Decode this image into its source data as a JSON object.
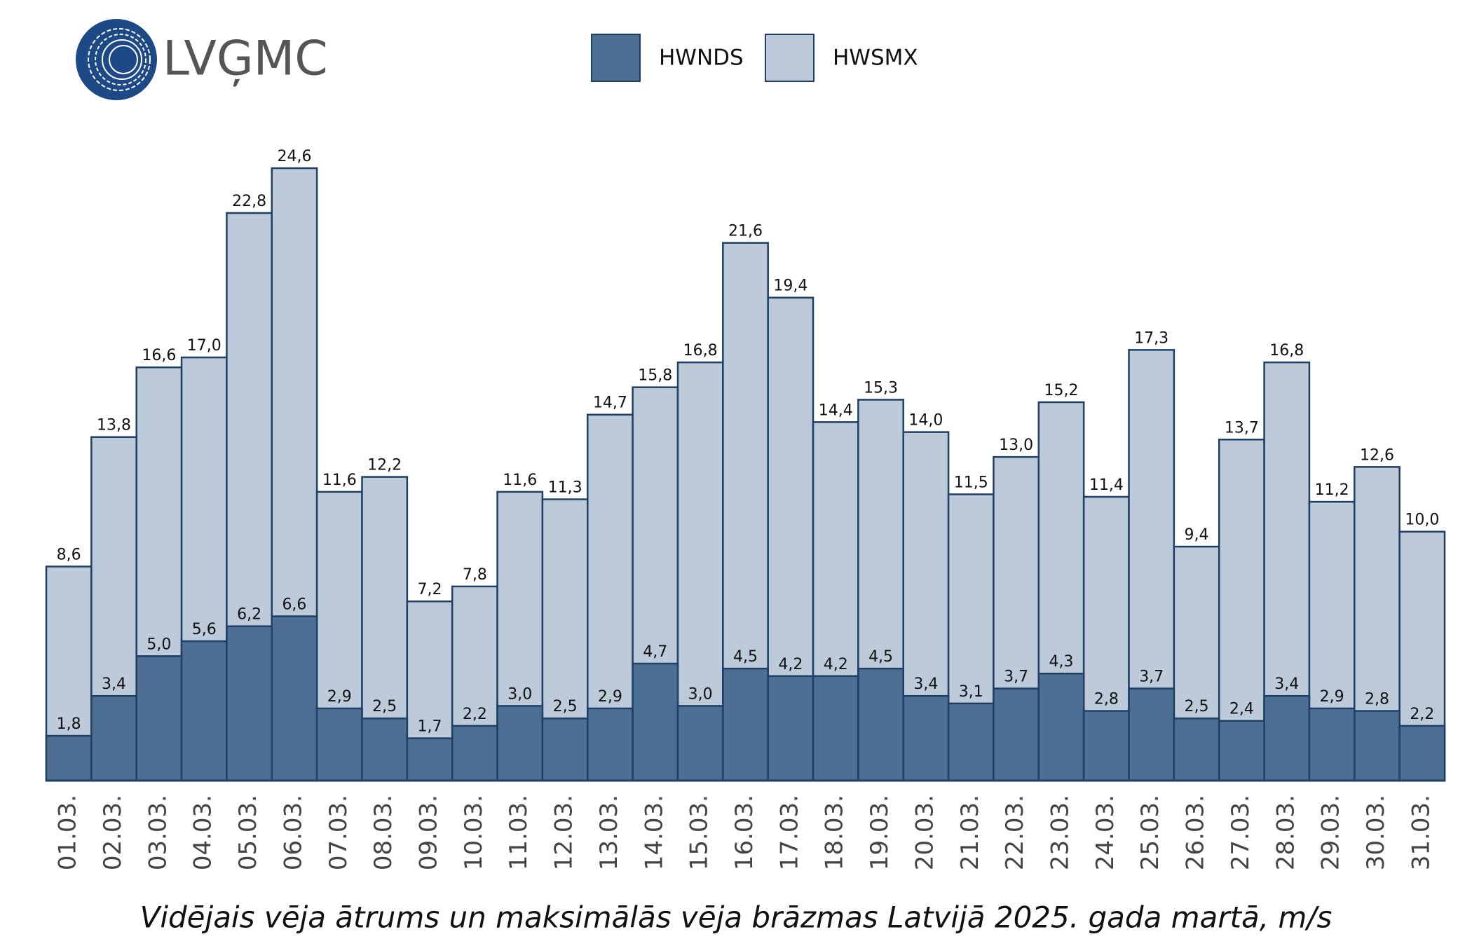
{
  "logo": "LVĢMC",
  "chart_data": {
    "type": "bar",
    "overlap": true,
    "title": "Vidējais vēja ātrums un maksimālās vēja brāzmas Latvijā 2025. gada martā, m/s",
    "legend": "top",
    "categories": [
      "01.03.",
      "02.03.",
      "03.03.",
      "04.03.",
      "05.03.",
      "06.03.",
      "07.03.",
      "08.03.",
      "09.03.",
      "10.03.",
      "11.03.",
      "12.03.",
      "13.03.",
      "14.03.",
      "15.03.",
      "16.03.",
      "17.03.",
      "18.03.",
      "19.03.",
      "20.03.",
      "21.03.",
      "22.03.",
      "23.03.",
      "24.03.",
      "25.03.",
      "26.03.",
      "27.03.",
      "28.03.",
      "29.03.",
      "30.03.",
      "31.03."
    ],
    "series": [
      {
        "name": "HWNDS",
        "color": "#4d6f94",
        "values": [
          1.8,
          3.4,
          5.0,
          5.6,
          6.2,
          6.6,
          2.9,
          2.5,
          1.7,
          2.2,
          3.0,
          2.5,
          2.9,
          4.7,
          3.0,
          4.5,
          4.2,
          4.2,
          4.5,
          3.4,
          3.1,
          3.7,
          4.3,
          2.8,
          3.7,
          2.5,
          2.4,
          3.4,
          2.9,
          2.8,
          2.2
        ],
        "value_labels": [
          "1,8",
          "3,4",
          "5,0",
          "5,6",
          "6,2",
          "6,6",
          "2,9",
          "2,5",
          "1,7",
          "2,2",
          "3,0",
          "2,5",
          "2,9",
          "4,7",
          "3,0",
          "4,5",
          "4,2",
          "4,2",
          "4,5",
          "3,4",
          "3,1",
          "3,7",
          "4,3",
          "2,8",
          "3,7",
          "2,5",
          "2,4",
          "3,4",
          "2,9",
          "2,8",
          "2,2"
        ]
      },
      {
        "name": "HWSMX",
        "color": "#bccada",
        "values": [
          8.6,
          13.8,
          16.6,
          17.0,
          22.8,
          24.6,
          11.6,
          12.2,
          7.2,
          7.8,
          11.6,
          11.3,
          14.7,
          15.8,
          16.8,
          21.6,
          19.4,
          14.4,
          15.3,
          14.0,
          11.5,
          13.0,
          15.2,
          11.4,
          17.3,
          9.4,
          13.7,
          16.8,
          11.2,
          12.6,
          10.0
        ],
        "value_labels": [
          "8,6",
          "13,8",
          "16,6",
          "17,0",
          "22,8",
          "24,6",
          "11,6",
          "12,2",
          "7,2",
          "7,8",
          "11,6",
          "11,3",
          "14,7",
          "15,8",
          "16,8",
          "21,6",
          "19,4",
          "14,4",
          "15,3",
          "14,0",
          "11,5",
          "13,0",
          "15,2",
          "11,4",
          "17,3",
          "9,4",
          "13,7",
          "16,8",
          "11,2",
          "12,6",
          "10,0"
        ]
      }
    ]
  }
}
